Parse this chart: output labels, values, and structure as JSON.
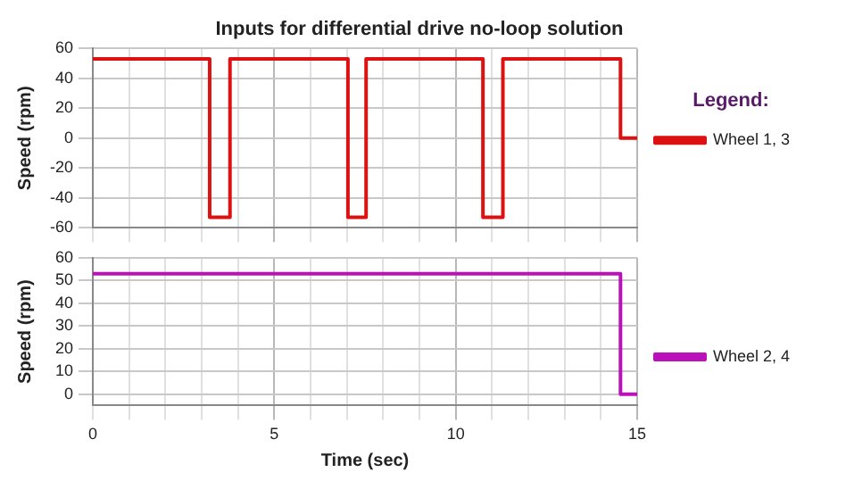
{
  "chart_data": [
    {
      "type": "step",
      "title": "Inputs for differential drive no-loop solution",
      "ylabel": "Speed (rpm)",
      "xlim": [
        0,
        15
      ],
      "xticks": [
        0,
        {
          "value": 1,
          "label": null
        },
        {
          "value": 2,
          "label": null
        },
        {
          "value": 3,
          "label": null
        },
        {
          "value": 4,
          "label": null
        },
        5,
        {
          "value": 6,
          "label": null
        },
        {
          "value": 7,
          "label": null
        },
        {
          "value": 8,
          "label": null
        },
        {
          "value": 9,
          "label": null
        },
        10,
        {
          "value": 11,
          "label": null
        },
        {
          "value": 12,
          "label": null
        },
        {
          "value": 13,
          "label": null
        },
        {
          "value": 14,
          "label": null
        },
        15
      ],
      "ylim": [
        -60,
        60
      ],
      "yticks": [
        -60,
        -40,
        -20,
        0,
        20,
        40,
        60
      ],
      "tick_labels": "y",
      "grid": true,
      "legend": "right",
      "legend_title": "Legend:",
      "marker": "none",
      "line_style": "solid",
      "series": [
        {
          "name": "Wheel 1, 3",
          "color": "#dd1111",
          "x": [
            0,
            3.22,
            3.78,
            7.03,
            7.53,
            10.75,
            11.3,
            14.54,
            15
          ],
          "values": [
            53,
            -53,
            53,
            -53,
            53,
            -53,
            53,
            0,
            0
          ]
        }
      ]
    },
    {
      "type": "step",
      "xlabel": "Time (sec)",
      "ylabel": "Speed (rpm)",
      "xlim": [
        0,
        15
      ],
      "xticks": [
        0,
        {
          "value": 1,
          "label": null
        },
        {
          "value": 2,
          "label": null
        },
        {
          "value": 3,
          "label": null
        },
        {
          "value": 4,
          "label": null
        },
        5,
        {
          "value": 6,
          "label": null
        },
        {
          "value": 7,
          "label": null
        },
        {
          "value": 8,
          "label": null
        },
        {
          "value": 9,
          "label": null
        },
        10,
        {
          "value": 11,
          "label": null
        },
        {
          "value": 12,
          "label": null
        },
        {
          "value": 13,
          "label": null
        },
        {
          "value": 14,
          "label": null
        },
        15
      ],
      "ylim": [
        -5,
        60
      ],
      "yticks": [
        0,
        10,
        20,
        30,
        40,
        50,
        60
      ],
      "grid": true,
      "legend": "right",
      "marker": "none",
      "line_style": "solid",
      "series": [
        {
          "name": "Wheel 2, 4",
          "color": "#bb11bb",
          "x": [
            0,
            14.54,
            15
          ],
          "values": [
            53,
            0,
            0
          ]
        }
      ]
    }
  ]
}
